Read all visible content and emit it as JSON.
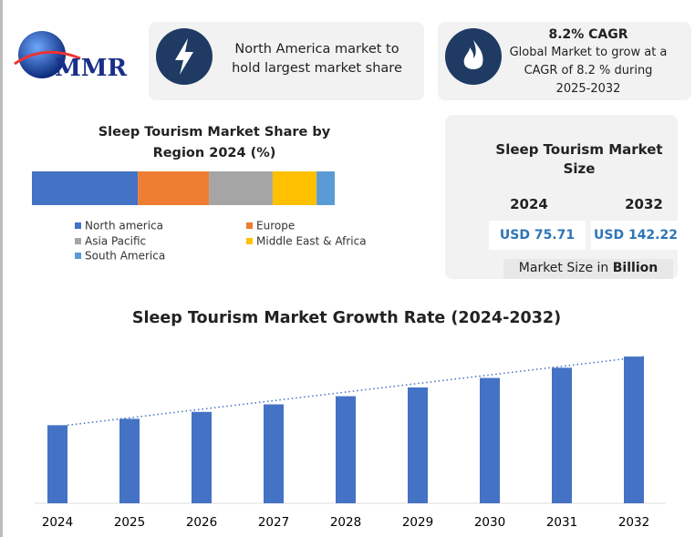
{
  "logo": {
    "text": "MMR"
  },
  "cards": [
    {
      "text": "North America market to hold largest market share"
    },
    {
      "title": "8.2% CAGR",
      "text": "Global Market to grow at a CAGR of 8.2 % during 2025-2032"
    }
  ],
  "market_size": {
    "title": "Sleep Tourism Market Size",
    "years": [
      "2024",
      "2032"
    ],
    "values": [
      "USD 75.71",
      "USD 142.22"
    ],
    "unit_prefix": "Market Size in",
    "unit": "Billion"
  },
  "chart_data": [
    {
      "type": "stacked_bar",
      "title": "Sleep Tourism Market Share by Region 2024 (%)",
      "series": [
        {
          "name": "North america",
          "color": "#4472c4",
          "values": [
            35
          ]
        },
        {
          "name": "Europe",
          "color": "#ed7d31",
          "values": [
            23.5
          ]
        },
        {
          "name": "Asia Pacific",
          "color": "#a5a5a5",
          "values": [
            21
          ]
        },
        {
          "name": "Middle East & Africa",
          "color": "#ffc000",
          "values": [
            14.5
          ]
        },
        {
          "name": "South America",
          "color": "#5b9bd5",
          "values": [
            6
          ]
        }
      ]
    },
    {
      "type": "bar",
      "title": "Sleep Tourism Market Growth Rate (2024-2032)",
      "categories": [
        "2024",
        "2025",
        "2026",
        "2027",
        "2028",
        "2029",
        "2030",
        "2031",
        "2032"
      ],
      "values": [
        75.71,
        81.9,
        88.6,
        95.9,
        103.8,
        112.3,
        121.5,
        131.4,
        142.22
      ],
      "color": "#4472c4",
      "ylim": [
        0,
        160
      ],
      "trendline": true
    }
  ]
}
